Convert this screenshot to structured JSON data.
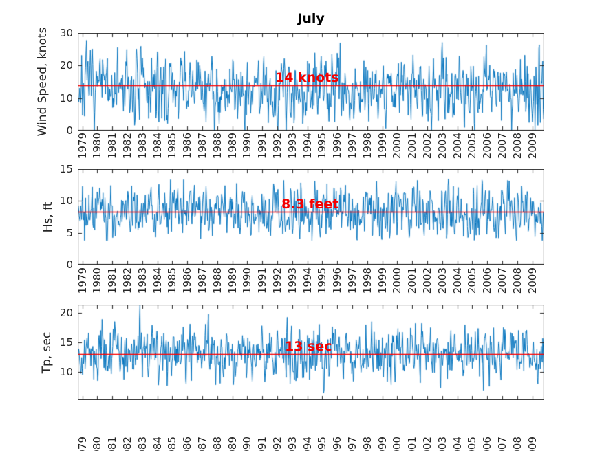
{
  "title": "July",
  "colors": {
    "series_line": "#0072BD",
    "reference_line": "#FF0000",
    "annotation_text": "#F50000",
    "axis": "#262626",
    "background": "#FFFFFF"
  },
  "years": [
    "1979",
    "1980",
    "1981",
    "1982",
    "1983",
    "1984",
    "1985",
    "1986",
    "1987",
    "1988",
    "1989",
    "1990",
    "1991",
    "1992",
    "1993",
    "1994",
    "1995",
    "1996",
    "1997",
    "1998",
    "1999",
    "2000",
    "2001",
    "2002",
    "2003",
    "2004",
    "2005",
    "2006",
    "2007",
    "2008",
    "2009"
  ],
  "chart_data": [
    {
      "type": "line",
      "id": "wind-speed",
      "title": "July",
      "ylabel": "Wind Speed, knots",
      "xlabel": "",
      "ylim": [
        0,
        30
      ],
      "yticks": [
        0,
        10,
        20,
        30
      ],
      "x_range": [
        1979,
        2009
      ],
      "grid": false,
      "ref_line": {
        "value": 14,
        "label": "14 knots"
      },
      "series": {
        "name": "wind-speed-daily-july",
        "n_points": 961,
        "mean": 13,
        "sd": 5.3,
        "clamp_min": 0.15,
        "clamp_max": 29.3,
        "seed": 7
      }
    },
    {
      "type": "line",
      "id": "significant-wave-height",
      "ylabel": "Hs, ft",
      "xlabel": "",
      "ylim": [
        0,
        15
      ],
      "yticks": [
        0,
        5,
        10,
        15
      ],
      "x_range": [
        1979,
        2009
      ],
      "grid": false,
      "ref_line": {
        "value": 8.3,
        "label": "8.3 feet"
      },
      "series": {
        "name": "hs-daily-july",
        "n_points": 961,
        "mean": 8.3,
        "sd": 2.1,
        "clamp_min": 3.8,
        "clamp_max": 15.6,
        "seed": 21
      }
    },
    {
      "type": "line",
      "id": "peak-period",
      "ylabel": "Tp, sec",
      "xlabel": "",
      "ylim": [
        5.2,
        21.4
      ],
      "yticks": [
        10,
        15,
        20
      ],
      "x_range": [
        1979,
        2009
      ],
      "grid": false,
      "ref_line": {
        "value": 13,
        "label": "13 sec"
      },
      "series": {
        "name": "tp-daily-july",
        "n_points": 961,
        "mean": 13.1,
        "sd": 2.3,
        "clamp_min": 6.2,
        "clamp_max": 21.35,
        "seed": 42
      }
    }
  ]
}
